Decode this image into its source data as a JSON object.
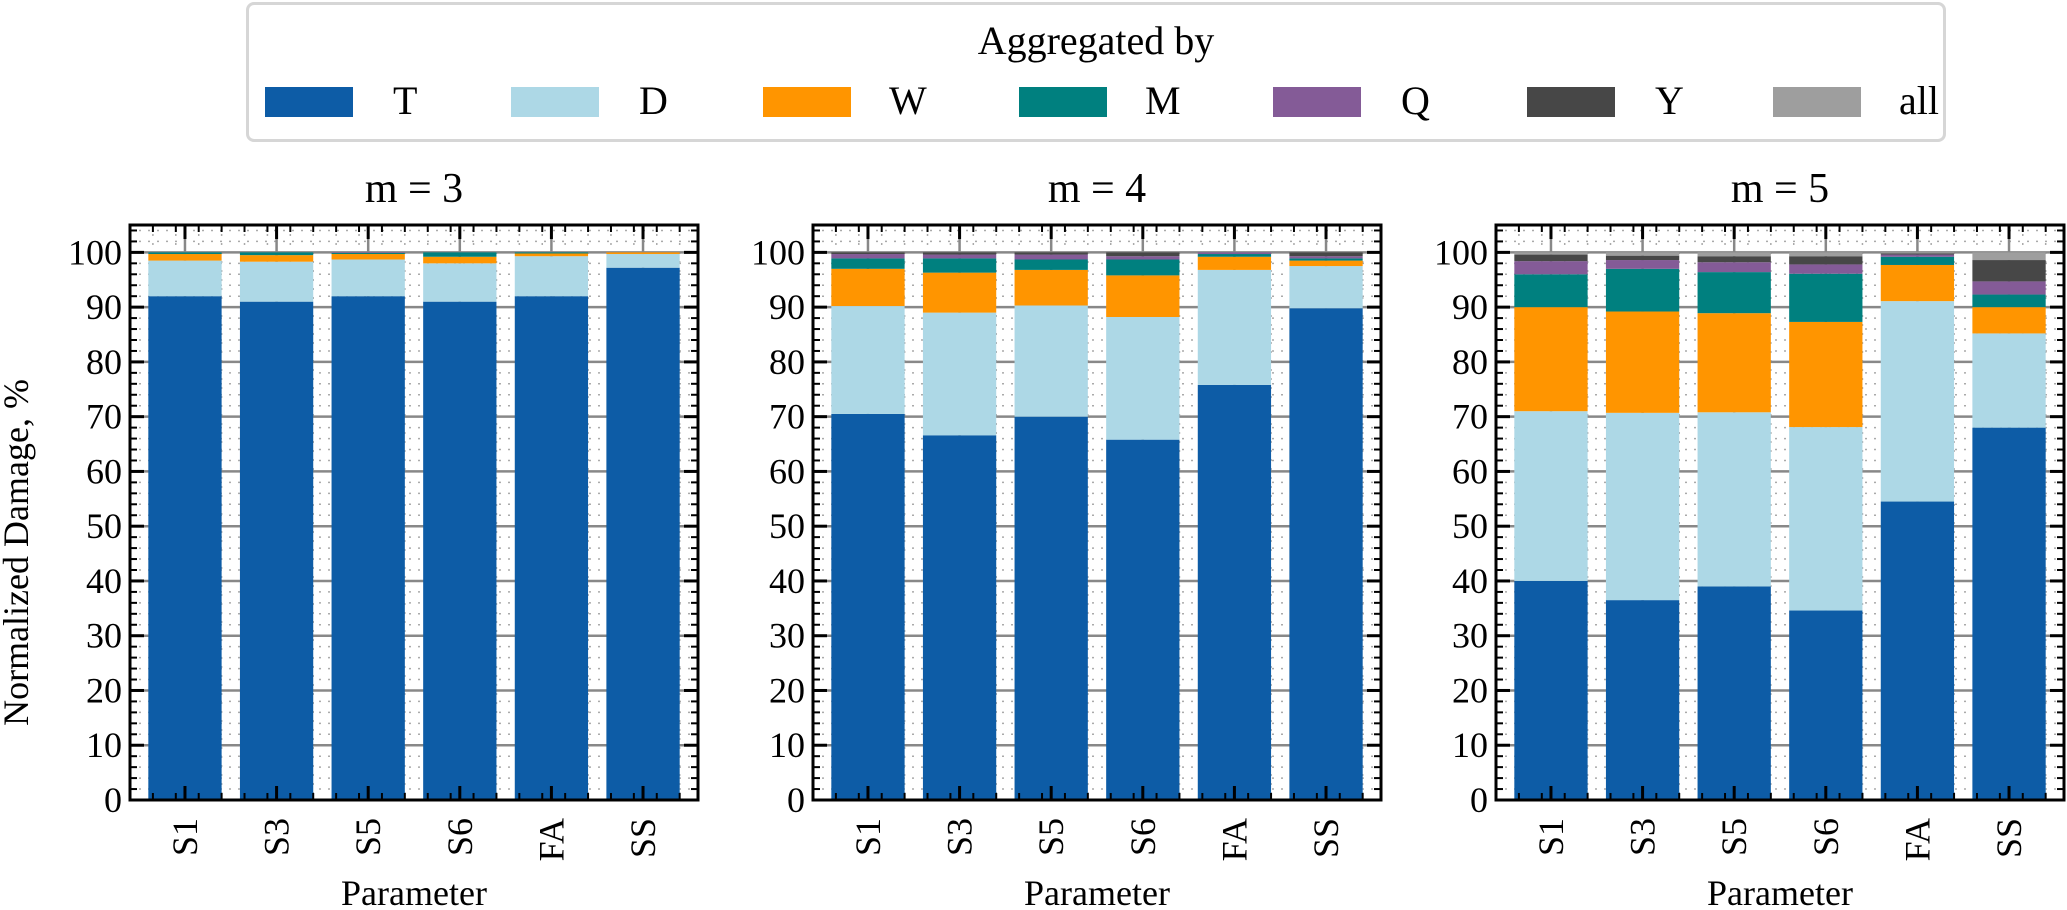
{
  "legend": {
    "title": "Aggregated by",
    "items": [
      {
        "label": "T",
        "color": "#0d5ca6"
      },
      {
        "label": "D",
        "color": "#add8e6"
      },
      {
        "label": "W",
        "color": "#ff9500"
      },
      {
        "label": "M",
        "color": "#00807f"
      },
      {
        "label": "Q",
        "color": "#845b97"
      },
      {
        "label": "Y",
        "color": "#474747"
      },
      {
        "label": "all",
        "color": "#9e9e9e"
      }
    ]
  },
  "chart_data": [
    {
      "type": "bar",
      "stacked": true,
      "title": "m = 3",
      "xlabel": "Parameter",
      "ylabel": "Normalized Damage, %",
      "ylim": [
        0,
        105
      ],
      "yticks": [
        0,
        10,
        20,
        30,
        40,
        50,
        60,
        70,
        80,
        90,
        100
      ],
      "categories": [
        "S1",
        "S3",
        "S5",
        "S6",
        "FA",
        "SS"
      ],
      "grid": true,
      "series": [
        {
          "name": "T",
          "values": [
            92.0,
            91.0,
            92.0,
            91.0,
            92.0,
            97.2
          ]
        },
        {
          "name": "D",
          "values": [
            6.5,
            7.3,
            6.7,
            7.0,
            7.3,
            2.5
          ]
        },
        {
          "name": "W",
          "values": [
            1.2,
            1.2,
            1.0,
            1.2,
            0.5,
            0.3
          ]
        },
        {
          "name": "M",
          "values": [
            0.3,
            0.5,
            0.2,
            0.8,
            0.2,
            0.0
          ]
        },
        {
          "name": "Q",
          "values": [
            0.0,
            0.0,
            0.1,
            0.0,
            0.0,
            0.0
          ]
        },
        {
          "name": "Y",
          "values": [
            0.0,
            0.0,
            0.0,
            0.0,
            0.0,
            0.0
          ]
        },
        {
          "name": "all",
          "values": [
            0.0,
            0.0,
            0.0,
            0.0,
            0.0,
            0.0
          ]
        }
      ]
    },
    {
      "type": "bar",
      "stacked": true,
      "title": "m = 4",
      "xlabel": "Parameter",
      "ylabel": "",
      "ylim": [
        0,
        105
      ],
      "yticks": [
        0,
        10,
        20,
        30,
        40,
        50,
        60,
        70,
        80,
        90,
        100
      ],
      "categories": [
        "S1",
        "S3",
        "S5",
        "S6",
        "FA",
        "SS"
      ],
      "grid": true,
      "series": [
        {
          "name": "T",
          "values": [
            70.5,
            66.6,
            70.0,
            65.8,
            75.8,
            89.8
          ]
        },
        {
          "name": "D",
          "values": [
            19.7,
            22.4,
            20.3,
            22.4,
            21.0,
            7.7
          ]
        },
        {
          "name": "W",
          "values": [
            6.8,
            7.3,
            6.5,
            7.6,
            2.4,
            1.0
          ]
        },
        {
          "name": "M",
          "values": [
            1.9,
            2.6,
            1.9,
            2.9,
            0.5,
            0.4
          ]
        },
        {
          "name": "Q",
          "values": [
            0.8,
            0.7,
            0.9,
            0.6,
            0.3,
            0.4
          ]
        },
        {
          "name": "Y",
          "values": [
            0.3,
            0.4,
            0.4,
            0.7,
            0.0,
            0.7
          ]
        },
        {
          "name": "all",
          "values": [
            0.0,
            0.0,
            0.0,
            0.0,
            0.0,
            0.0
          ]
        }
      ]
    },
    {
      "type": "bar",
      "stacked": true,
      "title": "m = 5",
      "xlabel": "Parameter",
      "ylabel": "",
      "ylim": [
        0,
        105
      ],
      "yticks": [
        0,
        10,
        20,
        30,
        40,
        50,
        60,
        70,
        80,
        90,
        100
      ],
      "categories": [
        "S1",
        "S3",
        "S5",
        "S6",
        "FA",
        "SS"
      ],
      "grid": true,
      "series": [
        {
          "name": "T",
          "values": [
            40.0,
            36.5,
            39.0,
            34.6,
            54.5,
            68.0
          ]
        },
        {
          "name": "D",
          "values": [
            31.0,
            34.2,
            31.8,
            33.5,
            36.6,
            17.2
          ]
        },
        {
          "name": "W",
          "values": [
            19.0,
            18.5,
            18.1,
            19.2,
            6.6,
            4.8
          ]
        },
        {
          "name": "M",
          "values": [
            6.0,
            7.8,
            7.5,
            8.8,
            1.5,
            2.3
          ]
        },
        {
          "name": "Q",
          "values": [
            2.4,
            1.6,
            1.8,
            1.7,
            0.4,
            2.4
          ]
        },
        {
          "name": "Y",
          "values": [
            1.2,
            0.8,
            1.1,
            1.5,
            0.2,
            3.9
          ]
        },
        {
          "name": "all",
          "values": [
            0.4,
            0.6,
            0.7,
            0.7,
            0.2,
            1.4
          ]
        }
      ]
    }
  ]
}
